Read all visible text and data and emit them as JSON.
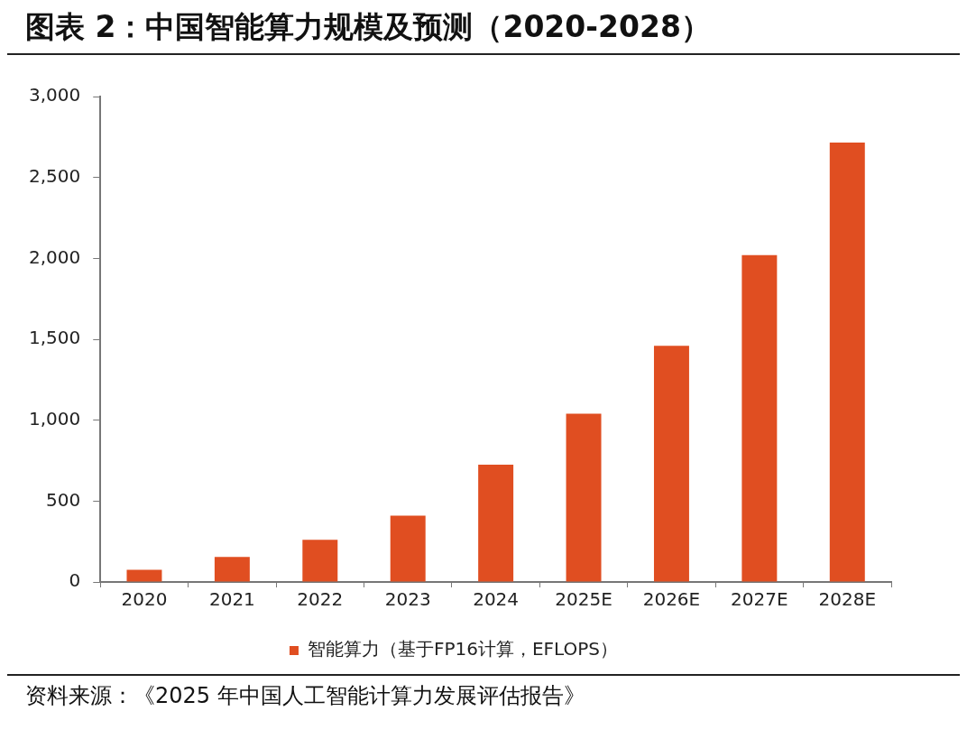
{
  "chart_data": {
    "type": "bar",
    "title": "图表 2：中国智能算力规模及预测（2020-2028）",
    "categories": [
      "2020",
      "2021",
      "2022",
      "2023",
      "2024",
      "2025E",
      "2026E",
      "2027E",
      "2028E"
    ],
    "series": [
      {
        "name": "智能算力（基于FP16计算，EFLOPS）",
        "color": "#e04e21",
        "values": [
          75,
          155,
          260,
          410,
          725,
          1040,
          1460,
          2020,
          2715
        ]
      }
    ],
    "ylim": [
      0,
      3000
    ],
    "yticks": [
      0,
      500,
      {
        "value": 1000,
        "label": "1,000"
      },
      {
        "value": 1500,
        "label": "1,500"
      },
      {
        "value": 2000,
        "label": "2,000"
      },
      {
        "value": 2500,
        "label": "2,500"
      },
      {
        "value": 3000,
        "label": "3,000"
      }
    ],
    "legend": "bottom",
    "annotations": [
      "资料来源：《2025 年中国人工智能计算力发展评估报告》"
    ]
  }
}
